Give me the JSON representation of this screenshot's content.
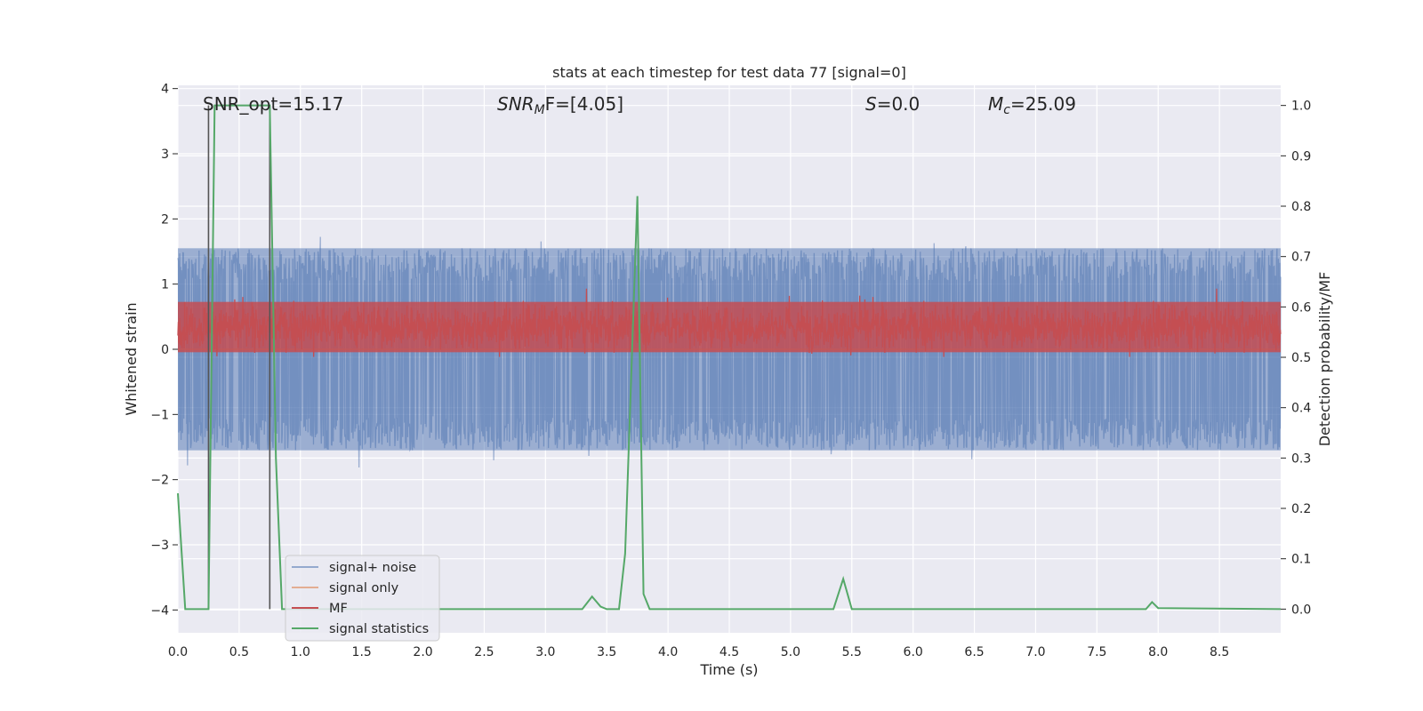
{
  "chart_data": {
    "type": "line",
    "title": "stats at each timestep for test data 77 [signal=0]",
    "xlabel": "Time (s)",
    "ylabel_left": "Whitened strain",
    "ylabel_right": "Detection probability/MF",
    "xlim": [
      0.0,
      9.0
    ],
    "ylim_left": [
      -4.35,
      4.05
    ],
    "ylim_right": [
      -0.047,
      1.04
    ],
    "xticks": [
      "0.0",
      "0.5",
      "1.0",
      "1.5",
      "2.0",
      "2.5",
      "3.0",
      "3.5",
      "4.0",
      "4.5",
      "5.0",
      "5.5",
      "6.0",
      "6.5",
      "7.0",
      "7.5",
      "8.0",
      "8.5"
    ],
    "xtick_values": [
      0.0,
      0.5,
      1.0,
      1.5,
      2.0,
      2.5,
      3.0,
      3.5,
      4.0,
      4.5,
      5.0,
      5.5,
      6.0,
      6.5,
      7.0,
      7.5,
      8.0,
      8.5
    ],
    "yticks_left": [
      "−4",
      "−3",
      "−2",
      "−1",
      "0",
      "1",
      "2",
      "3",
      "4"
    ],
    "ytick_values_left": [
      -4,
      -3,
      -2,
      -1,
      0,
      1,
      2,
      3,
      4
    ],
    "yticks_right": [
      "0.0",
      "0.1",
      "0.2",
      "0.3",
      "0.4",
      "0.5",
      "0.6",
      "0.7",
      "0.8",
      "0.9",
      "1.0"
    ],
    "ytick_values_right": [
      0.0,
      0.1,
      0.2,
      0.3,
      0.4,
      0.5,
      0.6,
      0.7,
      0.8,
      0.9,
      1.0
    ],
    "grid": true,
    "legend_position": "lower-left",
    "annotations": {
      "snr_opt": "SNR_opt=15.17",
      "snr_mf_main": "SNR",
      "snr_mf_sub": "M",
      "snr_mf_rest": "F=[4.05]",
      "s_main": "S",
      "s_rest": "=0.0",
      "mc_main": "M",
      "mc_sub": "c",
      "mc_rest": "=25.09"
    },
    "vertical_lines_x": [
      0.25,
      0.75
    ],
    "series": [
      {
        "name": "signal+ noise",
        "color": "#4c72b0",
        "alpha": 0.5,
        "axis": "left",
        "typical_band": [
          -1.55,
          1.55
        ],
        "extremes": [
          -4.0,
          3.65
        ]
      },
      {
        "name": "signal only",
        "color": "#dd8452",
        "axis": "left",
        "values": "zero"
      },
      {
        "name": "MF",
        "color": "#c44e52",
        "axis": "right",
        "typical_band": [
          0.51,
          0.61
        ]
      },
      {
        "name": "signal statistics",
        "color": "#55a868",
        "axis": "right",
        "x": [
          0.0,
          0.06,
          0.25,
          0.3,
          0.5,
          0.6,
          0.75,
          0.8,
          0.85,
          3.3,
          3.38,
          3.45,
          3.5,
          3.6,
          3.65,
          3.75,
          3.8,
          3.85,
          5.35,
          5.43,
          5.5,
          7.9,
          7.95,
          8.0,
          9.0
        ],
        "y": [
          0.23,
          0.0,
          0.0,
          1.0,
          1.0,
          1.0,
          1.0,
          0.3,
          0.0,
          0.0,
          0.025,
          0.005,
          0.0,
          0.0,
          0.11,
          0.82,
          0.03,
          0.0,
          0.0,
          0.06,
          0.0,
          0.0,
          0.014,
          0.002,
          0.0
        ]
      }
    ]
  }
}
